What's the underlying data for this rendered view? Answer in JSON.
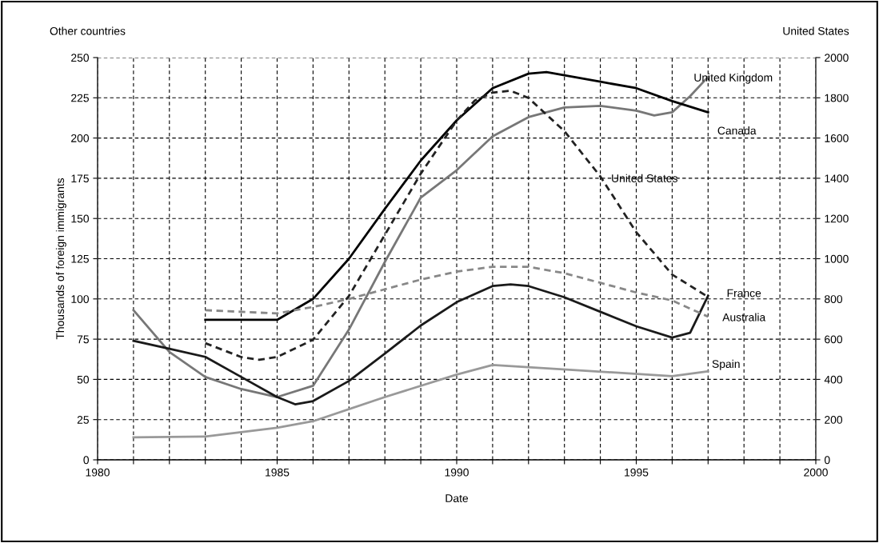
{
  "chart_data": {
    "type": "line",
    "xlabel": "Date",
    "ylabel": "Thousands of foreign immigrants",
    "y2label": "United States",
    "annotations": [
      "Other countries"
    ],
    "xlim": [
      1980,
      2000
    ],
    "xticks": [
      1980,
      {
        "value": 1981,
        "label": null
      },
      {
        "value": 1982,
        "label": null
      },
      {
        "value": 1983,
        "label": null
      },
      {
        "value": 1984,
        "label": null
      },
      1985,
      {
        "value": 1986,
        "label": null
      },
      {
        "value": 1987,
        "label": null
      },
      {
        "value": 1988,
        "label": null
      },
      {
        "value": 1989,
        "label": null
      },
      1990,
      {
        "value": 1991,
        "label": null
      },
      {
        "value": 1992,
        "label": null
      },
      {
        "value": 1993,
        "label": null
      },
      {
        "value": 1994,
        "label": null
      },
      1995,
      {
        "value": 1996,
        "label": null
      },
      {
        "value": 1997,
        "label": null
      },
      {
        "value": 1998,
        "label": null
      },
      {
        "value": 1999,
        "label": null
      },
      2000
    ],
    "ylim": [
      0,
      250
    ],
    "yticks": [
      0,
      25,
      50,
      75,
      100,
      125,
      150,
      175,
      200,
      225,
      250
    ],
    "y2lim": [
      0,
      2000
    ],
    "y2ticks": [
      0,
      200,
      400,
      600,
      800,
      1000,
      1200,
      1400,
      1600,
      1800,
      2000
    ],
    "grid": true,
    "legend": false,
    "marker": "none",
    "series": [
      {
        "name": "United Kingdom",
        "color": "#777777",
        "line_style": "solid",
        "x": [
          1981,
          1982,
          1983,
          1984,
          1985,
          1986,
          1987,
          1988,
          1989,
          1990,
          1991,
          1992,
          1993,
          1994,
          1995,
          1995.5,
          1996,
          1996.5,
          1997
        ],
        "values": [
          93,
          67,
          51.5,
          44,
          39,
          46,
          81,
          123,
          163,
          180,
          201,
          213,
          219,
          220,
          217,
          214,
          216,
          226,
          238
        ]
      },
      {
        "name": "Canada",
        "color": "#000000",
        "line_style": "solid",
        "x": [
          1983,
          1984,
          1985,
          1986,
          1987,
          1988,
          1989,
          1990,
          1991,
          1992,
          1992.5,
          1993,
          1994,
          1995,
          1996,
          1997
        ],
        "values": [
          87,
          87,
          87,
          100,
          125,
          156,
          186,
          211,
          231,
          240,
          241,
          239,
          235,
          231,
          223,
          216
        ]
      },
      {
        "name": "United States",
        "color": "#222222",
        "line_style": "dashed",
        "axis": "y2",
        "x": [
          1983,
          1984,
          1984.5,
          1985,
          1986,
          1987,
          1988,
          1989,
          1990,
          1990.5,
          1991,
          1991.5,
          1992,
          1993,
          1994,
          1995,
          1996,
          1997
        ],
        "values": [
          580,
          511,
          498,
          511,
          597,
          815,
          1119,
          1423,
          1687,
          1786,
          1826,
          1835,
          1799,
          1634,
          1409,
          1132,
          921,
          810
        ]
      },
      {
        "name": "France",
        "color": "#1a1a1a",
        "line_style": "solid",
        "x": [
          1981,
          1982,
          1983,
          1984,
          1985,
          1985.5,
          1986,
          1987,
          1988,
          1989,
          1990,
          1991,
          1991.5,
          1992,
          1993,
          1994,
          1995,
          1996,
          1996.5,
          1997
        ],
        "values": [
          74,
          69,
          64,
          51.5,
          39,
          34.5,
          36.5,
          49,
          66,
          83.5,
          98,
          108,
          109,
          108,
          101,
          92,
          83,
          76,
          79,
          102
        ]
      },
      {
        "name": "Australia",
        "color": "#888888",
        "line_style": "dashed",
        "x": [
          1983,
          1985,
          1986,
          1987,
          1988,
          1989,
          1990,
          1991,
          1992,
          1993,
          1994,
          1995,
          1996,
          1997
        ],
        "values": [
          93,
          91,
          95,
          100,
          106,
          112,
          117,
          120,
          120,
          116,
          110,
          104,
          99,
          89
        ]
      },
      {
        "name": "Spain",
        "color": "#999999",
        "line_style": "solid",
        "x": [
          1981,
          1983,
          1985,
          1986,
          1988,
          1990,
          1991,
          1996,
          1997
        ],
        "values": [
          14,
          14.5,
          20,
          24,
          39,
          53,
          59,
          52,
          55
        ]
      }
    ]
  }
}
